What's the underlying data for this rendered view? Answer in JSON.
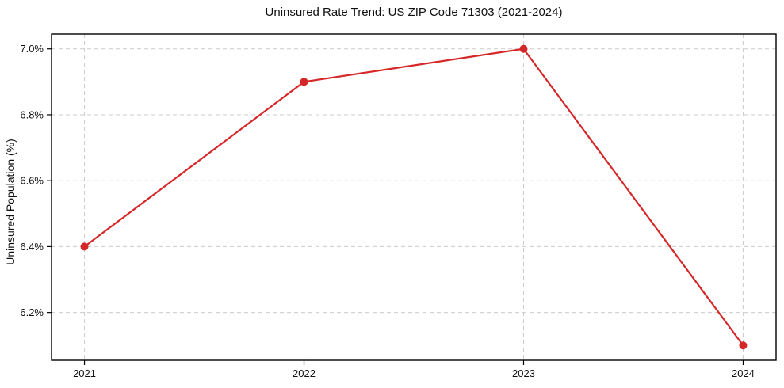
{
  "title": "Uninsured Rate Trend: US ZIP Code 71303 (2021-2024)",
  "chart_data": {
    "type": "line",
    "title": "Uninsured Rate Trend: US ZIP Code 71303 (2021-2024)",
    "xlabel": "",
    "ylabel": "Uninsured Population (%)",
    "x": [
      2021,
      2022,
      2023,
      2024
    ],
    "values": [
      6.4,
      6.9,
      7.0,
      6.1
    ],
    "xticks": [
      2021,
      2022,
      2023,
      2024
    ],
    "xtick_labels": [
      "2021",
      "2022",
      "2023",
      "2024"
    ],
    "yticks": [
      6.2,
      6.4,
      6.6,
      6.8,
      7.0
    ],
    "ytick_labels": [
      "6.2%",
      "6.4%",
      "6.6%",
      "6.8%",
      "7.0%"
    ],
    "xlim": [
      2020.85,
      2024.15
    ],
    "ylim": [
      6.055,
      7.045
    ],
    "grid": true,
    "legend": false,
    "colors": {
      "line": "#d62728",
      "marker": "#d62728",
      "grid": "#cccccc",
      "axis_border": "#000000",
      "background": "#ffffff",
      "text": "#111111"
    }
  }
}
